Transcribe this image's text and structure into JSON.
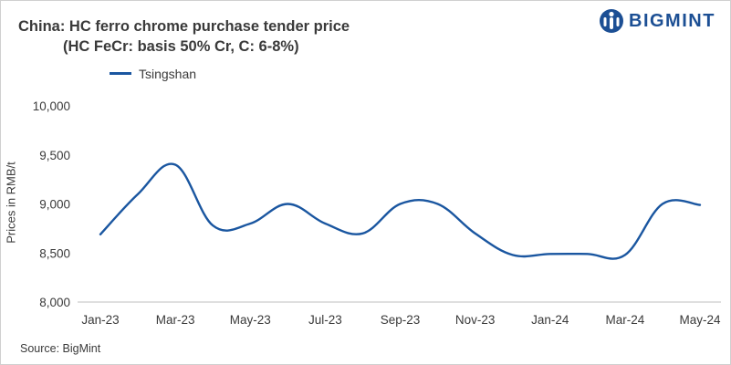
{
  "brand": {
    "name": "BIGMINT",
    "color": "#1c4f94"
  },
  "source": "Source: BigMint",
  "chart_data": {
    "type": "line",
    "title": "China: HC ferro chrome purchase tender price",
    "subtitle": "(HC FeCr: basis 50% Cr, C: 6-8%)",
    "xlabel": "",
    "ylabel": "Prices in RMB/t",
    "ylim": [
      8000,
      10000
    ],
    "yticks": [
      8000,
      8500,
      9000,
      9500,
      10000
    ],
    "ytick_labels": [
      "8,000",
      "8,500",
      "9,000",
      "9,500",
      "10,000"
    ],
    "categories": [
      "Jan-23",
      "Feb-23",
      "Mar-23",
      "Apr-23",
      "May-23",
      "Jun-23",
      "Jul-23",
      "Aug-23",
      "Sep-23",
      "Oct-23",
      "Nov-23",
      "Dec-23",
      "Jan-24",
      "Feb-24",
      "Mar-24",
      "Apr-24",
      "May-24"
    ],
    "xtick_labels": [
      "Jan-23",
      "Mar-23",
      "May-23",
      "Jul-23",
      "Sep-23",
      "Nov-23",
      "Jan-24",
      "Mar-24",
      "May-24"
    ],
    "grid": false,
    "legend_position": "top-left",
    "series": [
      {
        "name": "Tsingshan",
        "color": "#1a56a0",
        "values": [
          8690,
          9100,
          9400,
          8780,
          8800,
          9000,
          8800,
          8700,
          9000,
          9000,
          8700,
          8480,
          8490,
          8490,
          8480,
          9000,
          8990
        ]
      }
    ]
  }
}
